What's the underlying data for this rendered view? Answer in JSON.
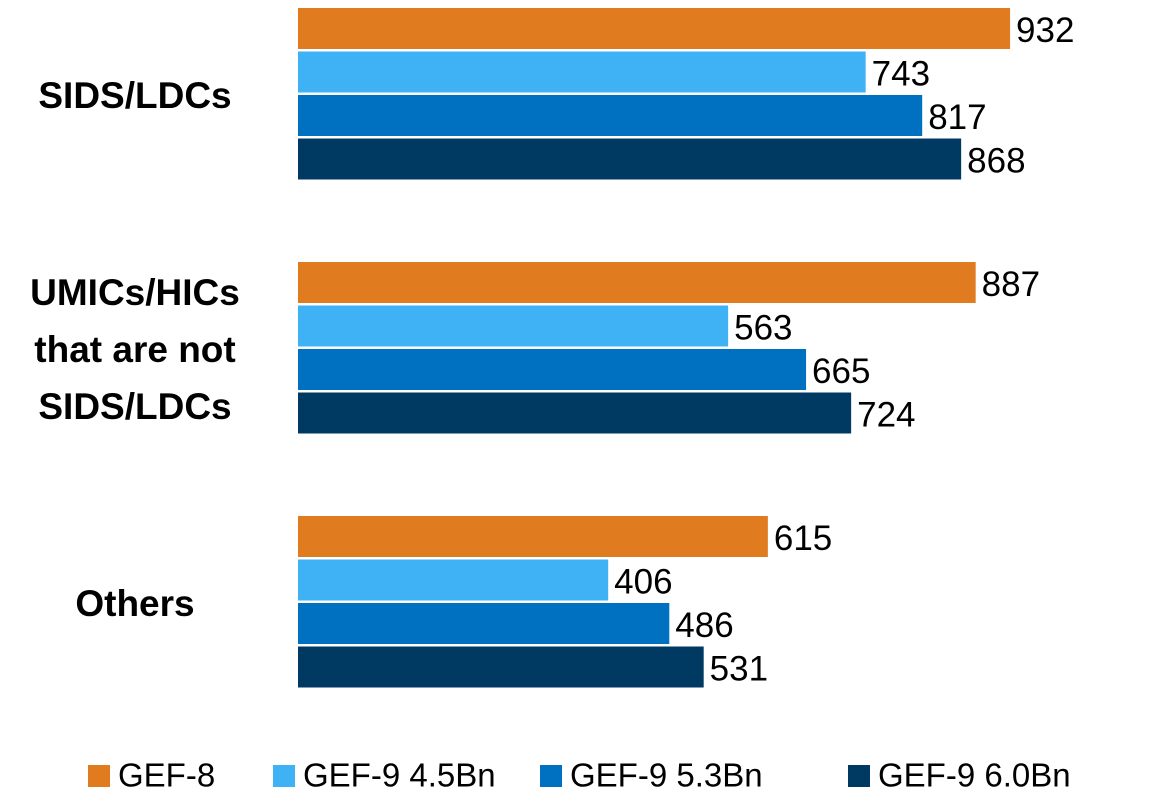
{
  "chart_data": {
    "type": "bar",
    "orientation": "horizontal",
    "categories": [
      "SIDS/LDCs",
      "UMICs/HICs that are not SIDS/LDCs",
      "Others"
    ],
    "series": [
      {
        "name": "GEF-8",
        "color": "#e07b20",
        "values": [
          932,
          887,
          615
        ]
      },
      {
        "name": "GEF-9 4.5Bn",
        "color": "#3fb1f5",
        "values": [
          743,
          563,
          406
        ]
      },
      {
        "name": "GEF-9 5.3Bn",
        "color": "#0070c0",
        "values": [
          817,
          665,
          486
        ]
      },
      {
        "name": "GEF-9 6.0Bn",
        "color": "#003a63",
        "values": [
          868,
          724,
          531
        ]
      }
    ],
    "legend": "bottom"
  }
}
